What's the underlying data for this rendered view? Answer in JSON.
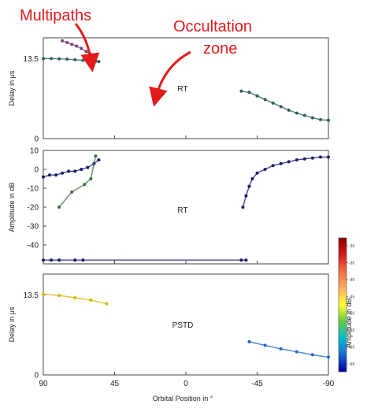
{
  "annotations": {
    "multipaths": "Multipaths",
    "occultation_line1": "Occultation",
    "occultation_line2": "zone",
    "arrow_color": "#e31a1c"
  },
  "colorbar": {
    "label": "Amplitude in dB",
    "ticks": [
      "-30",
      "-35",
      "-40",
      "-45",
      "-50",
      "-55",
      "-60",
      "-65"
    ],
    "range": [
      -68,
      -27
    ],
    "colors": [
      "#8b0000",
      "#d7191c",
      "#f46d43",
      "#fdae61",
      "#ffff33",
      "#66cc44",
      "#00bcd4",
      "#1e64d2",
      "#0000a0"
    ]
  },
  "xaxis": {
    "label": "Orbital Position in °",
    "ticks": [
      "90",
      "45",
      "0",
      "-45",
      "-90"
    ],
    "range": [
      90,
      -90
    ]
  },
  "chart_data": [
    {
      "type": "scatter",
      "panel_label": "RT",
      "ylabel": "Delay in μs",
      "ylim": [
        0,
        17
      ],
      "ytick_labels": [
        "0",
        "13.5"
      ],
      "yticks": [
        0,
        13.5
      ],
      "xlim": [
        90,
        -90
      ],
      "series": [
        {
          "color": "#2f5e5e",
          "x": [
            90,
            85,
            80,
            75,
            70,
            65,
            60,
            57,
            55
          ],
          "y": [
            13.5,
            13.5,
            13.45,
            13.4,
            13.3,
            13.2,
            13.1,
            13.05,
            13.0
          ]
        },
        {
          "color": "#7a3f7a",
          "x": [
            78,
            75,
            72,
            69,
            66,
            63,
            60,
            58
          ],
          "y": [
            16.5,
            16.2,
            15.9,
            15.6,
            15.2,
            14.7,
            14.2,
            13.8
          ]
        },
        {
          "color": "#2f5e5e",
          "x": [
            -35,
            -40,
            -45,
            -50,
            -55,
            -60,
            -65,
            -70,
            -75,
            -80,
            -85,
            -90
          ],
          "y": [
            8.0,
            7.8,
            7.2,
            6.6,
            6.0,
            5.4,
            4.8,
            4.3,
            3.9,
            3.5,
            3.2,
            3.1
          ]
        }
      ]
    },
    {
      "type": "scatter",
      "panel_label": "RT",
      "ylabel": "Amplitude in dB",
      "ylim": [
        -50,
        10
      ],
      "ytick_labels": [
        "10",
        "0",
        "-10",
        "-20",
        "-30",
        "-40"
      ],
      "yticks": [
        10,
        0,
        -10,
        -20,
        -30,
        -40
      ],
      "xlim": [
        90,
        -90
      ],
      "series": [
        {
          "color": "#1a1a6e",
          "x": [
            90,
            86,
            82,
            78,
            74,
            70,
            66,
            62,
            58,
            55
          ],
          "y": [
            -4,
            -3,
            -3,
            -2,
            -1,
            -1,
            0,
            1,
            3,
            5
          ]
        },
        {
          "color": "#3a6e3a",
          "x": [
            80,
            72,
            64,
            60,
            57
          ],
          "y": [
            -20,
            -12,
            -8,
            -5,
            7
          ]
        },
        {
          "color": "#1a1a6e",
          "x": [
            -36,
            -38,
            -40,
            -42,
            -45,
            -50,
            -55,
            -60,
            -65,
            -70,
            -75,
            -80,
            -85,
            -90
          ],
          "y": [
            -20,
            -14,
            -9,
            -5,
            -2,
            0,
            2,
            3,
            4,
            5,
            5.5,
            6,
            6.5,
            6.5
          ]
        },
        {
          "color": "#1a1a6e",
          "x": [
            90,
            85,
            80,
            70,
            65,
            -35,
            -38
          ],
          "y": [
            -48,
            -48,
            -48,
            -48,
            -48,
            -48,
            -48
          ]
        }
      ]
    },
    {
      "type": "scatter",
      "panel_label": "PSTD",
      "ylabel": "Delay in μs",
      "ylim": [
        0,
        17
      ],
      "ytick_labels": [
        "0",
        "13.5"
      ],
      "yticks": [
        0,
        13.5
      ],
      "xlim": [
        90,
        -90
      ],
      "series": [
        {
          "color": "#d4b800",
          "x": [
            90,
            80,
            70,
            60,
            50
          ],
          "y": [
            13.6,
            13.4,
            13.0,
            12.6,
            12.0
          ]
        },
        {
          "color": "#1e64d2",
          "x": [
            -40,
            -50,
            -60,
            -70,
            -80,
            -90
          ],
          "y": [
            5.6,
            5.0,
            4.4,
            3.9,
            3.4,
            3.0
          ]
        }
      ]
    }
  ]
}
